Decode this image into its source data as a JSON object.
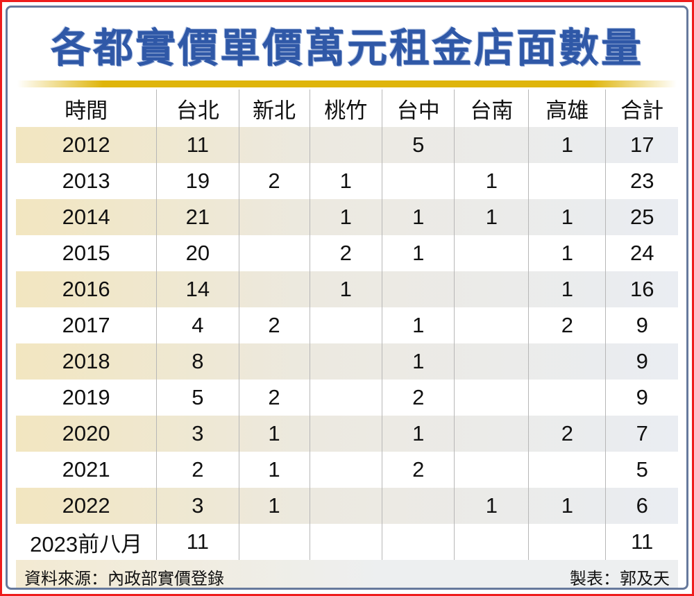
{
  "title": "各都實價單價萬元租金店面數量",
  "chart_data": {
    "type": "table",
    "title": "各都實價單價萬元租金店面數量",
    "columns": [
      "時間",
      "台北",
      "新北",
      "桃竹",
      "台中",
      "台南",
      "高雄",
      "合計"
    ],
    "rows": [
      [
        "2012",
        "11",
        "",
        "",
        "5",
        "",
        "1",
        "17"
      ],
      [
        "2013",
        "19",
        "2",
        "1",
        "",
        "1",
        "",
        "23"
      ],
      [
        "2014",
        "21",
        "",
        "1",
        "1",
        "1",
        "1",
        "25"
      ],
      [
        "2015",
        "20",
        "",
        "2",
        "1",
        "",
        "1",
        "24"
      ],
      [
        "2016",
        "14",
        "",
        "1",
        "",
        "",
        "1",
        "16"
      ],
      [
        "2017",
        "4",
        "2",
        "",
        "1",
        "",
        "2",
        "9"
      ],
      [
        "2018",
        "8",
        "",
        "",
        "1",
        "",
        "",
        "9"
      ],
      [
        "2019",
        "5",
        "2",
        "",
        "2",
        "",
        "",
        "9"
      ],
      [
        "2020",
        "3",
        "1",
        "",
        "1",
        "",
        "2",
        "7"
      ],
      [
        "2021",
        "2",
        "1",
        "",
        "2",
        "",
        "",
        "5"
      ],
      [
        "2022",
        "3",
        "1",
        "",
        "",
        "1",
        "1",
        "6"
      ],
      [
        "2023前八月",
        "11",
        "",
        "",
        "",
        "",
        "",
        "11"
      ]
    ]
  },
  "footer": {
    "source": "資料來源：內政部實價登錄",
    "credit": "製表：郭及天"
  },
  "colors": {
    "title_blue": "#2f58a7",
    "gold": "#dfb50b",
    "frame_red": "#ee1c1c",
    "frame_blue": "#66799c",
    "row_beige_left": "#f2e6c0",
    "row_beige_right": "#eaedf2",
    "divider_gray": "#b7b7b7"
  }
}
